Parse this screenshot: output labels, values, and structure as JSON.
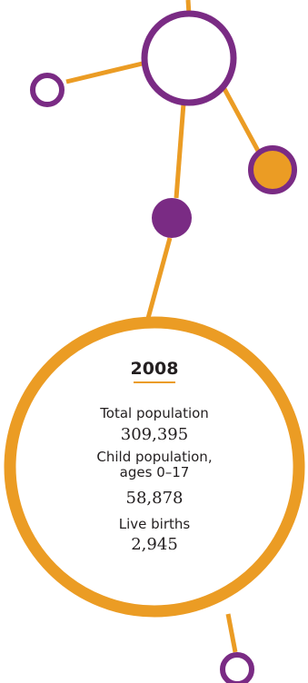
{
  "colors": {
    "orange": "#eb9c24",
    "purple": "#7a2b84",
    "white": "#ffffff"
  },
  "summary": {
    "year": "2008",
    "total_population_label": "Total population",
    "total_population_value": "309,395",
    "child_population_label": "Child population, ages 0–17",
    "child_population_value": "58,878",
    "live_births_label": "Live births",
    "live_births_value": "2,945"
  }
}
